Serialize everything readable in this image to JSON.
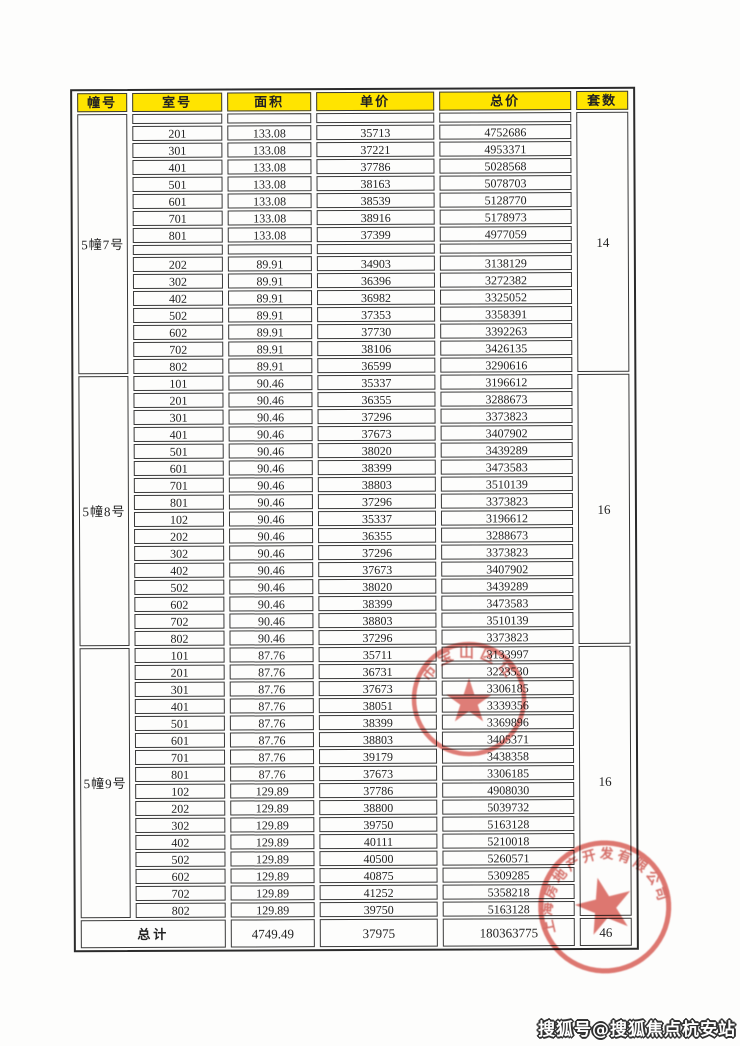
{
  "page": {
    "watermark": "搜狐号@搜狐焦点杭安站"
  },
  "table": {
    "headers": [
      "幢号",
      "室号",
      "面积",
      "单价",
      "总价",
      "套数"
    ],
    "header_bg": "#FFE400",
    "sections": [
      {
        "building": "5幢7号",
        "unit_count": "14",
        "rows": [
          {
            "room": "",
            "area": "",
            "price": "",
            "total": ""
          },
          {
            "room": "201",
            "area": "133.08",
            "price": "35713",
            "total": "4752686"
          },
          {
            "room": "301",
            "area": "133.08",
            "price": "37221",
            "total": "4953371"
          },
          {
            "room": "401",
            "area": "133.08",
            "price": "37786",
            "total": "5028568"
          },
          {
            "room": "501",
            "area": "133.08",
            "price": "38163",
            "total": "5078703"
          },
          {
            "room": "601",
            "area": "133.08",
            "price": "38539",
            "total": "5128770"
          },
          {
            "room": "701",
            "area": "133.08",
            "price": "38916",
            "total": "5178973"
          },
          {
            "room": "801",
            "area": "133.08",
            "price": "37399",
            "total": "4977059"
          },
          {
            "room": "",
            "area": "",
            "price": "",
            "total": ""
          },
          {
            "room": "202",
            "area": "89.91",
            "price": "34903",
            "total": "3138129"
          },
          {
            "room": "302",
            "area": "89.91",
            "price": "36396",
            "total": "3272382"
          },
          {
            "room": "402",
            "area": "89.91",
            "price": "36982",
            "total": "3325052"
          },
          {
            "room": "502",
            "area": "89.91",
            "price": "37353",
            "total": "3358391"
          },
          {
            "room": "602",
            "area": "89.91",
            "price": "37730",
            "total": "3392263"
          },
          {
            "room": "702",
            "area": "89.91",
            "price": "38106",
            "total": "3426135"
          },
          {
            "room": "802",
            "area": "89.91",
            "price": "36599",
            "total": "3290616"
          }
        ]
      },
      {
        "building": "5幢8号",
        "unit_count": "16",
        "rows": [
          {
            "room": "101",
            "area": "90.46",
            "price": "35337",
            "total": "3196612"
          },
          {
            "room": "201",
            "area": "90.46",
            "price": "36355",
            "total": "3288673"
          },
          {
            "room": "301",
            "area": "90.46",
            "price": "37296",
            "total": "3373823"
          },
          {
            "room": "401",
            "area": "90.46",
            "price": "37673",
            "total": "3407902"
          },
          {
            "room": "501",
            "area": "90.46",
            "price": "38020",
            "total": "3439289"
          },
          {
            "room": "601",
            "area": "90.46",
            "price": "38399",
            "total": "3473583"
          },
          {
            "room": "701",
            "area": "90.46",
            "price": "38803",
            "total": "3510139"
          },
          {
            "room": "801",
            "area": "90.46",
            "price": "37296",
            "total": "3373823"
          },
          {
            "room": "102",
            "area": "90.46",
            "price": "35337",
            "total": "3196612"
          },
          {
            "room": "202",
            "area": "90.46",
            "price": "36355",
            "total": "3288673"
          },
          {
            "room": "302",
            "area": "90.46",
            "price": "37296",
            "total": "3373823"
          },
          {
            "room": "402",
            "area": "90.46",
            "price": "37673",
            "total": "3407902"
          },
          {
            "room": "502",
            "area": "90.46",
            "price": "38020",
            "total": "3439289"
          },
          {
            "room": "602",
            "area": "90.46",
            "price": "38399",
            "total": "3473583"
          },
          {
            "room": "702",
            "area": "90.46",
            "price": "38803",
            "total": "3510139"
          },
          {
            "room": "802",
            "area": "90.46",
            "price": "37296",
            "total": "3373823"
          }
        ]
      },
      {
        "building": "5幢9号",
        "unit_count": "16",
        "rows": [
          {
            "room": "101",
            "area": "87.76",
            "price": "35711",
            "total": "3133997"
          },
          {
            "room": "201",
            "area": "87.76",
            "price": "36731",
            "total": "3223530"
          },
          {
            "room": "301",
            "area": "87.76",
            "price": "37673",
            "total": "3306185"
          },
          {
            "room": "401",
            "area": "87.76",
            "price": "38051",
            "total": "3339356"
          },
          {
            "room": "501",
            "area": "87.76",
            "price": "38399",
            "total": "3369896"
          },
          {
            "room": "601",
            "area": "87.76",
            "price": "38803",
            "total": "3405371"
          },
          {
            "room": "701",
            "area": "87.76",
            "price": "39179",
            "total": "3438358"
          },
          {
            "room": "801",
            "area": "87.76",
            "price": "37673",
            "total": "3306185"
          },
          {
            "room": "102",
            "area": "129.89",
            "price": "37786",
            "total": "4908030"
          },
          {
            "room": "202",
            "area": "129.89",
            "price": "38800",
            "total": "5039732"
          },
          {
            "room": "302",
            "area": "129.89",
            "price": "39750",
            "total": "5163128"
          },
          {
            "room": "402",
            "area": "129.89",
            "price": "40111",
            "total": "5210018"
          },
          {
            "room": "502",
            "area": "129.89",
            "price": "40500",
            "total": "5260571"
          },
          {
            "room": "602",
            "area": "129.89",
            "price": "40875",
            "total": "5309285"
          },
          {
            "room": "702",
            "area": "129.89",
            "price": "41252",
            "total": "5358218"
          },
          {
            "room": "802",
            "area": "129.89",
            "price": "39750",
            "total": "5163128"
          }
        ]
      }
    ],
    "total_row": {
      "label": "总计",
      "area": "4749.49",
      "price": "37975",
      "total": "180363775",
      "count": "46"
    }
  },
  "stamps": [
    {
      "arc_text": "市宝山区住",
      "center_icon": "star",
      "color": "#D85A52"
    },
    {
      "arc_text": "上海房地产开发有限公司",
      "center_icon": "star",
      "color": "#D85A52"
    }
  ]
}
